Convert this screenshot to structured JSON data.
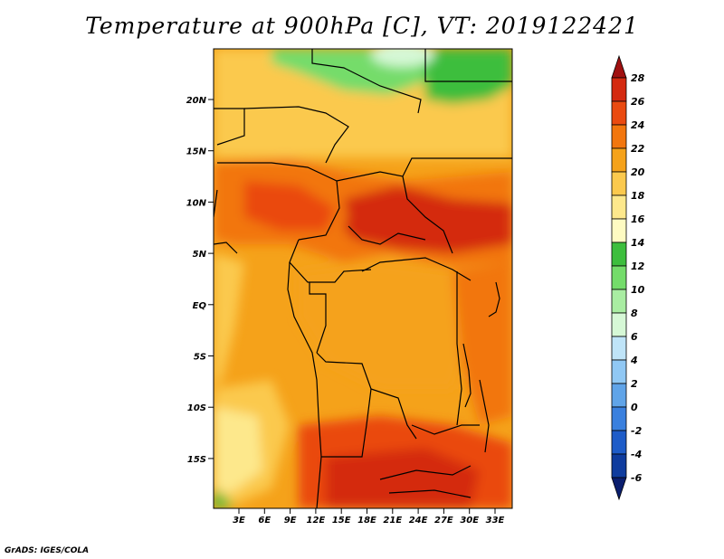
{
  "title": "Temperature at 900hPa [C], VT: 2019122421",
  "credit": "GrADS: IGES/COLA",
  "map": {
    "lat_labels": [
      "20N",
      "15N",
      "10N",
      "5N",
      "EQ",
      "5S",
      "10S",
      "15S"
    ],
    "lon_labels": [
      "3E",
      "6E",
      "9E",
      "12E",
      "15E",
      "18E",
      "21E",
      "24E",
      "27E",
      "30E",
      "33E"
    ]
  },
  "colorbar": {
    "labels": [
      "28",
      "26",
      "24",
      "22",
      "20",
      "18",
      "16",
      "14",
      "12",
      "10",
      "8",
      "6",
      "4",
      "2",
      "0",
      "-2",
      "-4",
      "-6"
    ],
    "colors": [
      "#a01010",
      "#d42a10",
      "#ea4a10",
      "#f2760e",
      "#f5a21a",
      "#fbc94e",
      "#fde88c",
      "#fefbc2",
      "#3dbe3d",
      "#74dc6a",
      "#a9eda2",
      "#d6f8d6",
      "#bfe4f8",
      "#90c8f4",
      "#60a4e8",
      "#3a80de",
      "#1e5cc8",
      "#0f3c9e",
      "#0a1e6e"
    ]
  }
}
